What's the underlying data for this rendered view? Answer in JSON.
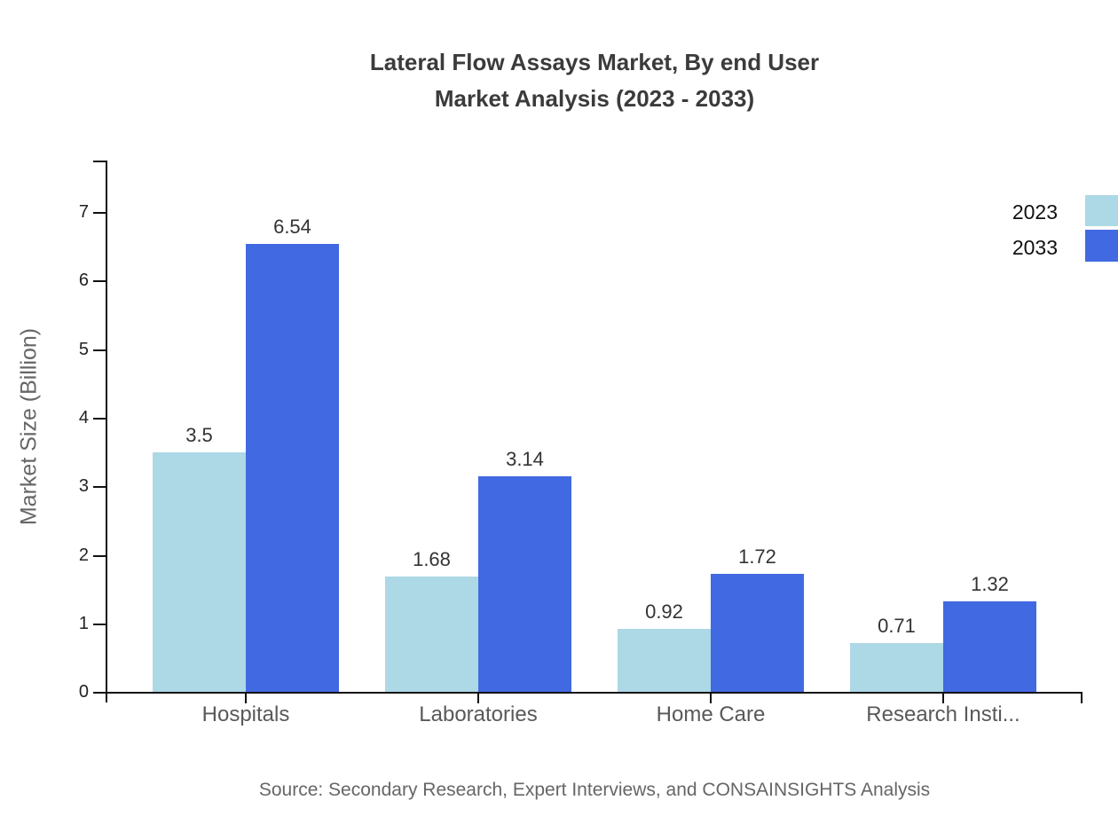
{
  "title": {
    "line1": "Lateral Flow Assays Market, By end User",
    "line2": "Market Analysis (2023 - 2033)"
  },
  "source": "Source: Secondary Research, Expert Interviews, and CONSAINSIGHTS Analysis",
  "legend": {
    "entries": [
      {
        "label": "2023",
        "color": "#ADD8E6"
      },
      {
        "label": "2033",
        "color": "#4169E1"
      }
    ]
  },
  "chart_data": {
    "type": "bar",
    "title": "Lateral Flow Assays Market, By end User Market Analysis (2023 - 2033)",
    "categories": [
      "Hospitals",
      "Laboratories",
      "Home Care",
      "Research Insti..."
    ],
    "series": [
      {
        "name": "2023",
        "color": "#ADD8E6",
        "values": [
          3.5,
          1.68,
          0.92,
          0.71
        ]
      },
      {
        "name": "2033",
        "color": "#4169E1",
        "values": [
          6.54,
          3.14,
          1.72,
          1.32
        ]
      }
    ],
    "value_labels": [
      [
        "3.5",
        "1.68",
        "0.92",
        "0.71"
      ],
      [
        "6.54",
        "3.14",
        "1.72",
        "1.32"
      ]
    ],
    "xlabel": "",
    "ylabel": "Market Size (Billion)",
    "yticks": [
      0,
      1,
      2,
      3,
      4,
      5,
      6,
      7
    ],
    "ylim": [
      0,
      7.75
    ],
    "grid": false,
    "legend_position": "top-right",
    "axis_color": "#111111"
  }
}
